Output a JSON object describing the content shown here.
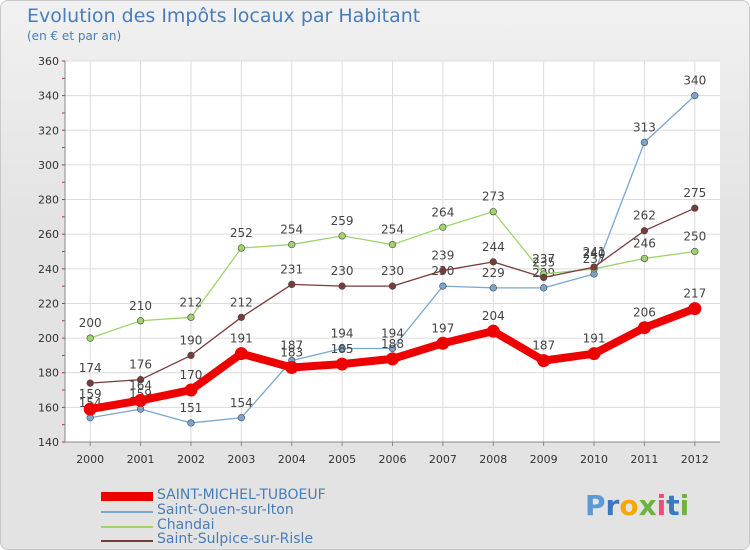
{
  "header": {
    "title": "Evolution des Impôts locaux par Habitant",
    "subtitle": "(en € et par an)"
  },
  "brand": {
    "letters": [
      {
        "ch": "P",
        "color": "#5b9bd5"
      },
      {
        "ch": "r",
        "color": "#3a78c2"
      },
      {
        "ch": "o",
        "color": "#f2a900"
      },
      {
        "ch": "x",
        "color": "#6cb33f"
      },
      {
        "ch": "i",
        "color": "#e94e77"
      },
      {
        "ch": "t",
        "color": "#3a78c2"
      },
      {
        "ch": "i",
        "color": "#6cb33f"
      }
    ]
  },
  "chart_data": {
    "type": "line",
    "title": "Evolution des Impôts locaux par Habitant",
    "subtitle": "(en € et par an)",
    "xlabel": "",
    "ylabel": "",
    "x": [
      "2000",
      "2001",
      "2002",
      "2003",
      "2004",
      "2005",
      "2006",
      "2007",
      "2008",
      "2009",
      "2010",
      "2011",
      "2012"
    ],
    "ylim": [
      140,
      360
    ],
    "yticks": [
      "140",
      "160",
      "180",
      "200",
      "220",
      "240",
      "260",
      "280",
      "300",
      "320",
      "340",
      "360"
    ],
    "grid": true,
    "legend_position": "bottom-left",
    "series": [
      {
        "name": "SAINT-MICHEL-TUBOEUF",
        "color": "#ee0000",
        "bold": true,
        "values": [
          159,
          164,
          170,
          191,
          183,
          185,
          188,
          197,
          204,
          187,
          191,
          206,
          217
        ],
        "labels": [
          "159",
          "164",
          "170",
          "191",
          "183",
          "185",
          "188",
          "197",
          "204",
          "187",
          "191",
          "206",
          "217"
        ]
      },
      {
        "name": "Saint-Ouen-sur-Iton",
        "color": "#7aa5cf",
        "bold": false,
        "values": [
          154,
          159,
          151,
          154,
          187,
          194,
          194,
          230,
          229,
          229,
          237,
          313,
          340
        ],
        "labels": [
          "154",
          "159",
          "151",
          "154",
          "187",
          "194",
          "194",
          "230",
          "229",
          "229",
          "237",
          "313",
          "340"
        ]
      },
      {
        "name": "Chandai",
        "color": "#9fd36c",
        "bold": false,
        "values": [
          200,
          210,
          212,
          252,
          254,
          259,
          254,
          264,
          273,
          237,
          240,
          246,
          250
        ],
        "labels": [
          "200",
          "210",
          "212",
          "252",
          "254",
          "259",
          "254",
          "264",
          "273",
          "237",
          "240",
          "246",
          "250"
        ]
      },
      {
        "name": "Saint-Sulpice-sur-Risle",
        "color": "#7a3b3b",
        "bold": false,
        "values": [
          174,
          176,
          190,
          212,
          231,
          230,
          230,
          239,
          244,
          235,
          241,
          262,
          275
        ],
        "labels": [
          "174",
          "176",
          "190",
          "212",
          "231",
          "230",
          "230",
          "239",
          "244",
          "235",
          "241",
          "262",
          "275"
        ]
      }
    ]
  }
}
